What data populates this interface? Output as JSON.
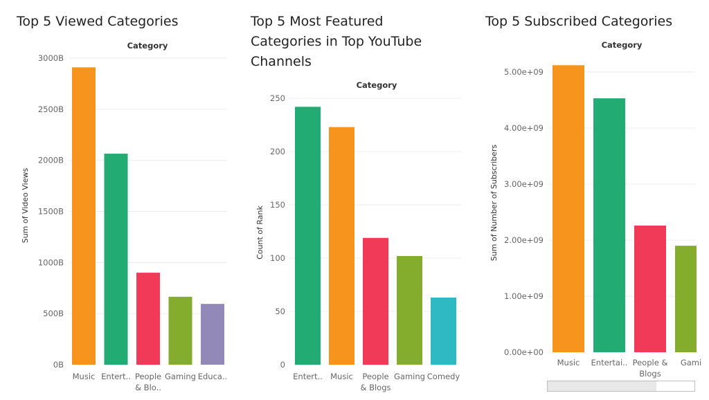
{
  "chart_data": [
    {
      "type": "bar",
      "title": "Top 5 Viewed Categories",
      "header": "Category",
      "ylabel": "Sum of Video Views",
      "categories": [
        "Music",
        "Entert..",
        "People\n& Blo..",
        "Gaming",
        "Educa.."
      ],
      "values": [
        2910,
        2065,
        900,
        665,
        595
      ],
      "yticks": [
        0,
        500,
        1000,
        1500,
        2000,
        2500,
        3000
      ],
      "ytick_labels": [
        "0B",
        "500B",
        "1000B",
        "1500B",
        "2000B",
        "2500B",
        "3000B"
      ],
      "ylim": [
        0,
        3000
      ],
      "colors": [
        "#f7941d",
        "#22ac74",
        "#f03a57",
        "#84ad2e",
        "#9289b9"
      ]
    },
    {
      "type": "bar",
      "title": "Top 5 Most Featured\nCategories in Top YouTube\nChannels",
      "header": "Category",
      "ylabel": "Count of Rank",
      "categories": [
        "Entert..",
        "Music",
        "People\n& Blogs",
        "Gaming",
        "Comedy"
      ],
      "values": [
        242,
        223,
        119,
        102,
        63
      ],
      "yticks": [
        0,
        50,
        100,
        150,
        200,
        250
      ],
      "ytick_labels": [
        "0",
        "50",
        "100",
        "150",
        "200",
        "250"
      ],
      "ylim": [
        0,
        250
      ],
      "colors": [
        "#22ac74",
        "#f7941d",
        "#f03a57",
        "#84ad2e",
        "#2fb9c3"
      ]
    },
    {
      "type": "bar",
      "title": "Top 5 Subscribed Categories",
      "header": "Category",
      "ylabel": "Sum of Number of Subscribers",
      "categories": [
        "Music",
        "Entertai..",
        "People &\nBlogs",
        "Gami"
      ],
      "values": [
        5120000000,
        4530000000,
        2260000000,
        1900000000
      ],
      "yticks": [
        0,
        1000000000,
        2000000000,
        3000000000,
        4000000000,
        5000000000
      ],
      "ytick_labels": [
        "0.00e+00",
        "1.00e+09",
        "2.00e+09",
        "3.00e+09",
        "4.00e+09",
        "5.00e+09"
      ],
      "ylim": [
        0,
        5000000000
      ],
      "colors": [
        "#f7941d",
        "#22ac74",
        "#f03a57",
        "#84ad2e"
      ]
    }
  ]
}
